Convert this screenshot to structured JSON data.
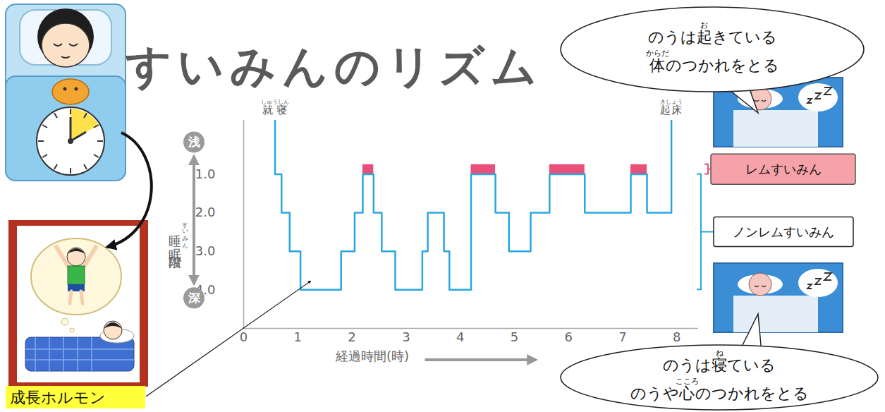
{
  "title": "すいみんのリズム",
  "chart_data": {
    "type": "step",
    "x": [
      0.58,
      0.58,
      0.7,
      0.85,
      1.05,
      1.8,
      2.05,
      2.2,
      2.4,
      2.55,
      2.8,
      3.3,
      3.4,
      3.7,
      3.8,
      4.2,
      4.65,
      4.9,
      5.3,
      5.65,
      6.3,
      7.15,
      7.45,
      7.9
    ],
    "values": [
      -0.4,
      1,
      2,
      3,
      4,
      3,
      2,
      1,
      2,
      3,
      4,
      3,
      2,
      3,
      4,
      1,
      2,
      3,
      2,
      1,
      2,
      1,
      2,
      -0.4
    ],
    "color": "#2aa6df",
    "xlabel": "経過時間(時)",
    "ylabel": [
      [
        "睡",
        "すい"
      ],
      [
        "眠",
        "みん"
      ],
      [
        "段階"
      ]
    ],
    "xlim": [
      0,
      8.4
    ],
    "ylim": [
      5,
      -0.4
    ],
    "xticks": [
      0,
      1,
      2,
      3,
      4,
      5,
      6,
      7,
      8
    ],
    "yticks": [
      1,
      2,
      3,
      4
    ],
    "shallow_label": "浅",
    "deep_label": "深",
    "start_label": [
      [
        "就寝",
        "しゅうしん"
      ]
    ],
    "end_label": [
      [
        "起床",
        "きしょう"
      ]
    ],
    "rem": {
      "name": "レムすいみん",
      "color": "#e8507a",
      "x1": [
        2.2,
        4.2,
        5.65,
        7.15
      ],
      "x2": [
        2.4,
        4.65,
        6.3,
        7.45
      ],
      "y1": 0.75,
      "y2": 1
    },
    "nonrem": {
      "name": "ノンレムすいみん",
      "color": "#2aa6df"
    }
  },
  "growth_hormone_label": "成長ホルモン",
  "bubbles": [
    {
      "lines": [
        [
          [
            "のうは"
          ],
          [
            "起",
            "お"
          ],
          [
            "きている"
          ]
        ],
        [
          [
            "体",
            "からだ"
          ],
          [
            "のつかれをとる"
          ]
        ]
      ]
    },
    {
      "lines": [
        [
          [
            "のうは"
          ],
          [
            "寝",
            "ね"
          ],
          [
            "ている"
          ]
        ],
        [
          [
            "のうや"
          ],
          [
            "心",
            "こころ"
          ],
          [
            "のつかれをとる"
          ]
        ]
      ]
    }
  ]
}
